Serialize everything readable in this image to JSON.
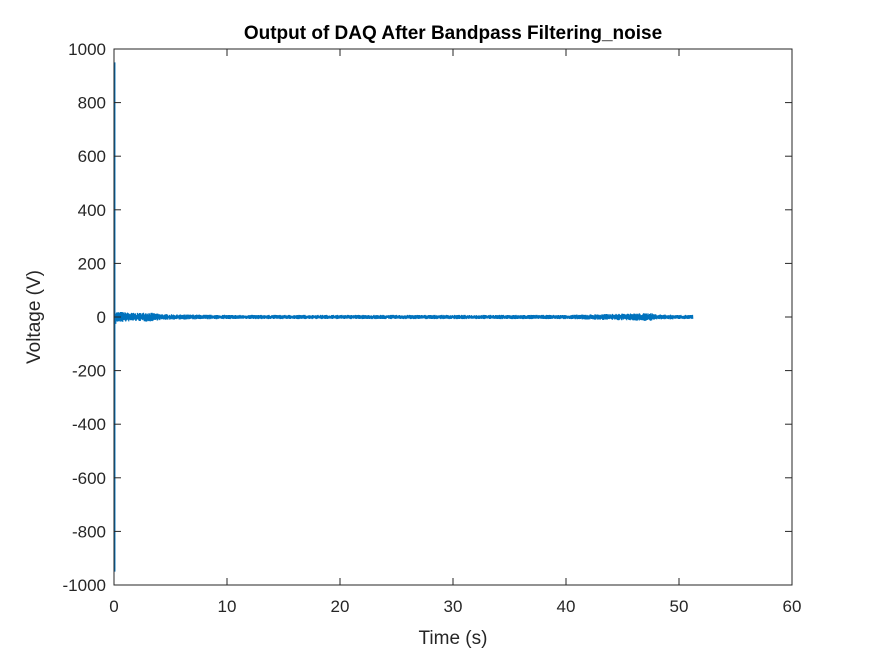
{
  "chart_data": {
    "type": "line",
    "title": "Output of DAQ After Bandpass Filtering_noise",
    "xlabel": "Time (s)",
    "ylabel": "Voltage (V)",
    "xlim": [
      0,
      60
    ],
    "ylim": [
      -1000,
      1000
    ],
    "xticks": [
      0,
      10,
      20,
      30,
      40,
      50,
      60
    ],
    "yticks": [
      -1000,
      -800,
      -600,
      -400,
      -200,
      0,
      200,
      400,
      600,
      800,
      1000
    ],
    "grid": false,
    "legend": "none",
    "series": [
      {
        "color": "#0072bd",
        "x_range": [
          0,
          51.2
        ],
        "envelope": {
          "x": [
            0,
            0.1,
            0.2,
            0.5,
            1,
            2,
            3,
            4,
            5,
            10,
            20,
            30,
            40,
            47.5,
            48,
            50,
            51.2
          ],
          "upper": [
            950,
            30,
            20,
            20,
            18,
            15,
            18,
            12,
            10,
            8,
            8,
            8,
            8,
            15,
            10,
            8,
            8
          ],
          "lower": [
            -950,
            -30,
            -20,
            -20,
            -18,
            -15,
            -18,
            -12,
            -10,
            -8,
            -8,
            -8,
            -8,
            -15,
            -10,
            -8,
            -8
          ]
        }
      }
    ]
  }
}
